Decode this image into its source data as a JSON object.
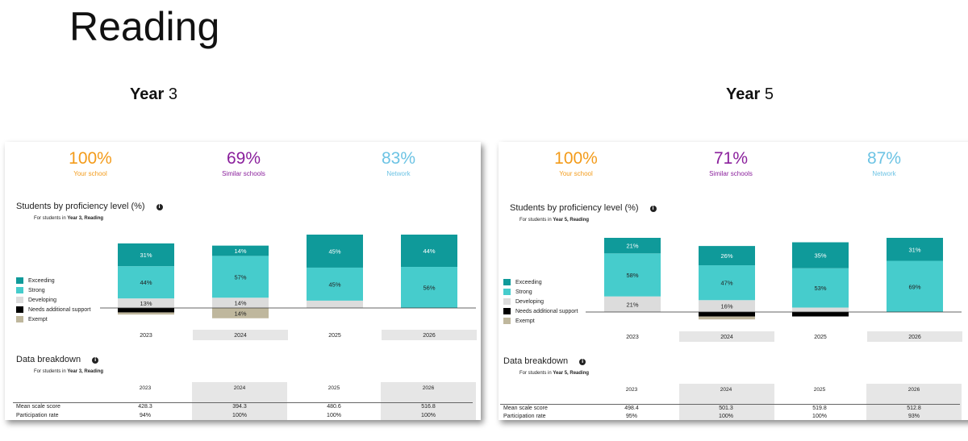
{
  "page": {
    "title": "Reading"
  },
  "colors": {
    "exceeding": "#0f9a9a",
    "strong": "#46cccc",
    "developing": "#dcdcdc",
    "needs_support": "#000000",
    "exempt": "#bfb79d",
    "your_school": "#f39b1a",
    "similar_schools": "#8a1f9c",
    "network": "#6cc3e4"
  },
  "panels": [
    {
      "heading_word": "Year",
      "heading_num": " 3",
      "kpis": [
        {
          "value": "100%",
          "label": "Your school"
        },
        {
          "value": "69%",
          "label": "Similar schools"
        },
        {
          "value": "83%",
          "label": "Network"
        }
      ],
      "proficiency_title": "Students by proficiency level (%)",
      "proficiency_note_prefix": "For students in ",
      "proficiency_note_bold": "Year 3, Reading",
      "legend": [
        "Exceeding",
        "Strong",
        "Developing",
        "Needs additional support",
        "Exempt"
      ],
      "breakdown_title": "Data breakdown",
      "breakdown_note_prefix": "For students in ",
      "breakdown_note_bold": "Year 3, Reading",
      "table_years": [
        "2023",
        "2024",
        "2025",
        "2026"
      ],
      "rows": [
        {
          "label": "Mean scale score",
          "values": [
            "428.3",
            "394.3",
            "480.6",
            "516.8"
          ]
        },
        {
          "label": "Participation rate",
          "values": [
            "94%",
            "100%",
            "100%",
            "100%"
          ]
        }
      ]
    },
    {
      "heading_word": "Year",
      "heading_num": " 5",
      "kpis": [
        {
          "value": "100%",
          "label": "Your school"
        },
        {
          "value": "71%",
          "label": "Similar schools"
        },
        {
          "value": "87%",
          "label": "Network"
        }
      ],
      "proficiency_title": "Students by proficiency level (%)",
      "proficiency_note_prefix": "For students in ",
      "proficiency_note_bold": "Year 5, Reading",
      "legend": [
        "Exceeding",
        "Strong",
        "Developing",
        "Needs additional support",
        "Exempt"
      ],
      "breakdown_title": "Data breakdown",
      "breakdown_note_prefix": "For students in ",
      "breakdown_note_bold": "Year 5, Reading",
      "table_years": [
        "2023",
        "2024",
        "2025",
        "2026"
      ],
      "rows": [
        {
          "label": "Mean scale score",
          "values": [
            "498.4",
            "501.3",
            "519.8",
            "512.8"
          ]
        },
        {
          "label": "Participation rate",
          "values": [
            "95%",
            "100%",
            "100%",
            "93%"
          ]
        }
      ]
    }
  ],
  "chart_data": [
    {
      "type": "bar",
      "stacked": true,
      "title": "Students by proficiency level (%)",
      "categories": [
        "2023",
        "2024",
        "2025",
        "2026"
      ],
      "series": [
        {
          "name": "Exceeding",
          "values": [
            31,
            14,
            45,
            44
          ],
          "labels": [
            "31%",
            "14%",
            "45%",
            "44%"
          ]
        },
        {
          "name": "Strong",
          "values": [
            44,
            57,
            45,
            56
          ],
          "labels": [
            "44%",
            "57%",
            "45%",
            "56%"
          ]
        },
        {
          "name": "Developing",
          "values": [
            13,
            14,
            10,
            0
          ],
          "labels": [
            "13%",
            "14%",
            "",
            ""
          ]
        },
        {
          "name": "Needs additional support",
          "values": [
            6,
            0,
            0,
            0
          ],
          "labels": [
            "",
            "",
            "",
            ""
          ]
        },
        {
          "name": "Exempt",
          "values": [
            3,
            14,
            0,
            0
          ],
          "labels": [
            "",
            "14%",
            "",
            ""
          ]
        }
      ]
    },
    {
      "type": "bar",
      "stacked": true,
      "title": "Students by proficiency level (%)",
      "categories": [
        "2023",
        "2024",
        "2025",
        "2026"
      ],
      "series": [
        {
          "name": "Exceeding",
          "values": [
            21,
            26,
            35,
            31
          ],
          "labels": [
            "21%",
            "26%",
            "35%",
            "31%"
          ]
        },
        {
          "name": "Strong",
          "values": [
            58,
            47,
            53,
            69
          ],
          "labels": [
            "58%",
            "47%",
            "53%",
            "69%"
          ]
        },
        {
          "name": "Developing",
          "values": [
            21,
            16,
            6,
            0
          ],
          "labels": [
            "21%",
            "16%",
            "",
            ""
          ]
        },
        {
          "name": "Needs additional support",
          "values": [
            0,
            6,
            6,
            0
          ],
          "labels": [
            "",
            "",
            "",
            ""
          ]
        },
        {
          "name": "Exempt",
          "values": [
            0,
            4,
            0,
            0
          ],
          "labels": [
            "",
            "",
            "",
            ""
          ]
        }
      ]
    }
  ]
}
